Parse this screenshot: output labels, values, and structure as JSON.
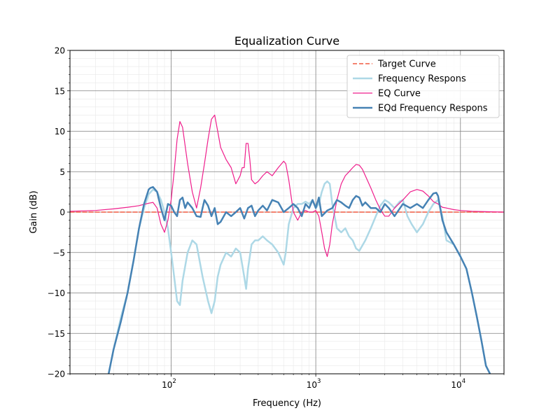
{
  "chart_data": {
    "type": "line",
    "title": "Equalization Curve",
    "xlabel": "Frequency (Hz)",
    "ylabel": "Gain (dB)",
    "xscale": "log",
    "xlim": [
      20,
      20000
    ],
    "ylim": [
      -20,
      20
    ],
    "grid": true,
    "legend_position": "top-right",
    "x_ticks": [
      {
        "value": 100,
        "base": "10",
        "exp": "2"
      },
      {
        "value": 1000,
        "base": "10",
        "exp": "3"
      },
      {
        "value": 10000,
        "base": "10",
        "exp": "4"
      }
    ],
    "y_ticks": [
      {
        "value": -20,
        "label": "−20"
      },
      {
        "value": -15,
        "label": "−15"
      },
      {
        "value": -10,
        "label": "−10"
      },
      {
        "value": -5,
        "label": "−5"
      },
      {
        "value": 0,
        "label": "0"
      },
      {
        "value": 5,
        "label": "5"
      },
      {
        "value": 10,
        "label": "10"
      },
      {
        "value": 15,
        "label": "15"
      },
      {
        "value": 20,
        "label": "20"
      }
    ],
    "series": [
      {
        "name": "Target Curve",
        "color": "#f15a40",
        "style": "dashed",
        "width": 1.5,
        "x": [
          20,
          20000
        ],
        "y": [
          0,
          0
        ]
      },
      {
        "name": "Frequency Respons",
        "color": "#add8e6",
        "style": "solid",
        "width": 2.5,
        "x": [
          37,
          40,
          45,
          50,
          55,
          60,
          65,
          70,
          75,
          80,
          85,
          90,
          95,
          100,
          105,
          110,
          115,
          120,
          130,
          140,
          150,
          165,
          180,
          190,
          200,
          210,
          220,
          240,
          260,
          280,
          300,
          320,
          330,
          340,
          360,
          380,
          400,
          430,
          460,
          500,
          550,
          600,
          620,
          650,
          700,
          750,
          800,
          850,
          900,
          950,
          1000,
          1050,
          1100,
          1150,
          1200,
          1250,
          1300,
          1400,
          1500,
          1600,
          1700,
          1800,
          1900,
          2000,
          2200,
          2400,
          2600,
          2800,
          3000,
          3200,
          3500,
          3800,
          4000,
          4300,
          4600,
          5000,
          5500,
          6000,
          6500,
          7000,
          7500,
          8000,
          9000,
          10000,
          11000,
          12000,
          13000,
          14000,
          15000,
          16000
        ],
        "y": [
          -20,
          -17,
          -13,
          -10,
          -6,
          -2,
          0.5,
          2.2,
          2.8,
          2.5,
          1.5,
          0,
          -2,
          -5,
          -8,
          -11,
          -11.5,
          -8.5,
          -5,
          -3.5,
          -4,
          -8,
          -11,
          -12.5,
          -11,
          -8,
          -6.5,
          -5,
          -5.5,
          -4.5,
          -5,
          -8,
          -9.5,
          -7,
          -4,
          -3.5,
          -3.5,
          -3,
          -3.5,
          -4,
          -5,
          -6.5,
          -5,
          -1.5,
          0.5,
          1,
          1,
          1.3,
          1,
          1.5,
          0.5,
          1,
          2.5,
          3.5,
          3.8,
          3.5,
          1,
          -2,
          -2.5,
          -2,
          -3,
          -3.5,
          -4.5,
          -4.8,
          -3.5,
          -2,
          -0.5,
          0.8,
          1.5,
          1.2,
          0.5,
          1.3,
          1.5,
          -0.5,
          -1.5,
          -2.5,
          -1.5,
          0,
          1,
          1.5,
          -0.5,
          -3.5,
          -4,
          -5.5,
          -7,
          -10,
          -13,
          -16,
          -19,
          -20
        ]
      },
      {
        "name": "EQ Curve",
        "color": "#ef1e8c",
        "style": "solid",
        "width": 1.2,
        "x": [
          20,
          30,
          40,
          50,
          60,
          70,
          75,
          80,
          85,
          90,
          95,
          100,
          105,
          110,
          115,
          120,
          130,
          140,
          150,
          160,
          170,
          180,
          190,
          200,
          210,
          220,
          240,
          260,
          280,
          300,
          310,
          320,
          330,
          340,
          350,
          360,
          380,
          400,
          430,
          460,
          500,
          550,
          600,
          620,
          650,
          700,
          750,
          800,
          850,
          900,
          950,
          1000,
          1050,
          1100,
          1150,
          1200,
          1250,
          1300,
          1400,
          1500,
          1600,
          1700,
          1800,
          1900,
          2000,
          2100,
          2200,
          2400,
          2600,
          2800,
          3000,
          3200,
          3500,
          4000,
          4500,
          5000,
          5500,
          6000,
          6500,
          7000,
          7500,
          8000,
          9000,
          10000,
          12000,
          15000,
          20000
        ],
        "y": [
          0.1,
          0.2,
          0.4,
          0.6,
          0.8,
          1.1,
          1.2,
          0.5,
          -1.5,
          -2.5,
          -1,
          1.5,
          5,
          9,
          11.2,
          10.5,
          6,
          2.5,
          0.5,
          3,
          6,
          9,
          11.5,
          12,
          10,
          8,
          6.5,
          5.5,
          3.5,
          4.5,
          5.5,
          5.5,
          8.5,
          8.5,
          6.5,
          4,
          3.5,
          3.8,
          4.5,
          5,
          4.5,
          5.5,
          6.3,
          6,
          4,
          0,
          -1,
          0,
          0.2,
          0,
          0,
          0.2,
          -0.5,
          -2.5,
          -4.5,
          -5.5,
          -4,
          -1.5,
          1.5,
          3.5,
          4.5,
          5,
          5.5,
          5.9,
          5.8,
          5.3,
          4.5,
          3,
          1.5,
          0.3,
          -0.5,
          -0.5,
          0.5,
          1.5,
          2.5,
          2.8,
          2.6,
          2,
          1.3,
          1,
          0.6,
          0.5,
          0.3,
          0.2,
          0.1,
          0.05,
          0
        ]
      },
      {
        "name": "EQd Frequency Respons",
        "color": "#4682b4",
        "style": "solid",
        "width": 2.5,
        "x": [
          37,
          40,
          45,
          50,
          55,
          60,
          65,
          70,
          72,
          75,
          80,
          85,
          90,
          95,
          100,
          105,
          110,
          115,
          120,
          125,
          130,
          140,
          150,
          160,
          165,
          170,
          180,
          190,
          200,
          210,
          220,
          240,
          260,
          280,
          300,
          320,
          340,
          360,
          380,
          400,
          430,
          460,
          500,
          550,
          600,
          650,
          700,
          750,
          800,
          850,
          900,
          950,
          1000,
          1050,
          1100,
          1200,
          1300,
          1400,
          1500,
          1600,
          1700,
          1800,
          1900,
          2000,
          2100,
          2200,
          2400,
          2600,
          2800,
          3000,
          3200,
          3500,
          4000,
          4500,
          5000,
          5500,
          6000,
          6500,
          6800,
          7000,
          7500,
          8000,
          9000,
          10000,
          11000,
          12000,
          13000,
          14000,
          15000,
          16000
        ],
        "y": [
          -20,
          -17,
          -13.5,
          -10,
          -6,
          -2,
          1,
          2.8,
          3,
          3.1,
          2.5,
          0.5,
          -1,
          1,
          0.8,
          0,
          -0.5,
          1.5,
          1.8,
          0.5,
          1.2,
          0.5,
          -0.5,
          -0.6,
          0.5,
          1.5,
          0.8,
          -0.5,
          0.5,
          -1.5,
          -1.2,
          0,
          -0.5,
          0,
          0.5,
          -0.8,
          0.5,
          0.8,
          -0.5,
          0.2,
          0.8,
          0.2,
          1.5,
          1.2,
          0,
          0.5,
          1,
          0.5,
          -0.5,
          1,
          0.5,
          1.5,
          0.5,
          1.8,
          -0.5,
          0.2,
          0.5,
          1.5,
          1.2,
          0.8,
          0.5,
          1.5,
          2,
          1.8,
          0.8,
          1.2,
          0.5,
          0.5,
          0,
          1,
          0.5,
          -0.5,
          1,
          0.5,
          1,
          0.5,
          1.5,
          2.3,
          2.4,
          2,
          -1,
          -2.5,
          -4,
          -5.5,
          -7,
          -10,
          -13,
          -16,
          -19,
          -20
        ]
      }
    ]
  }
}
